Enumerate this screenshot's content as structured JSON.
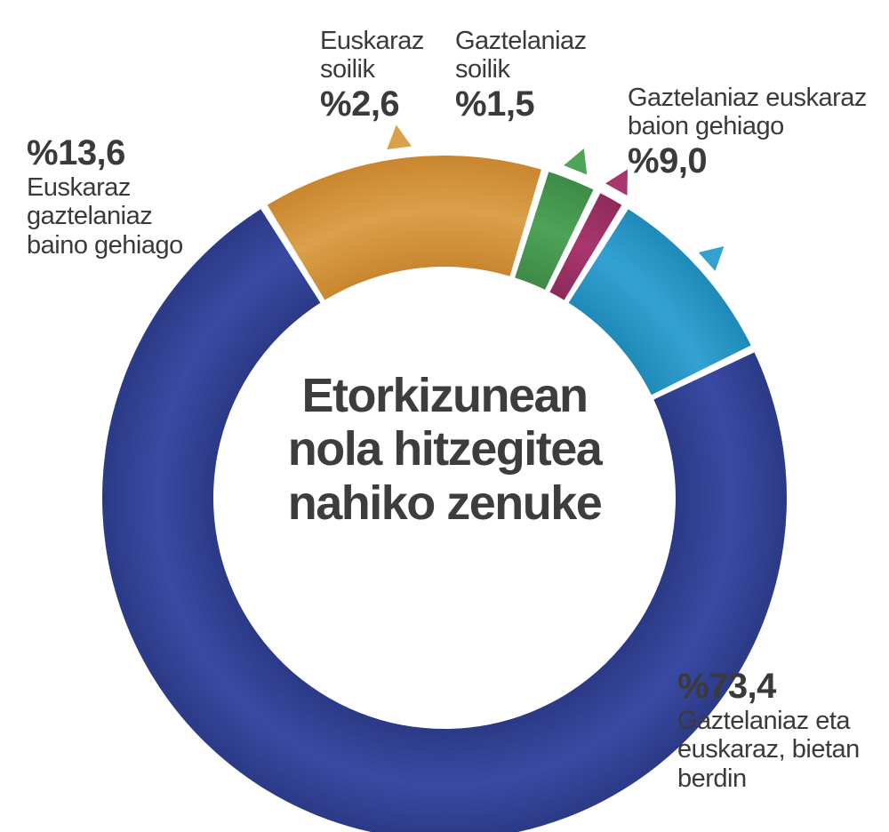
{
  "chart_data": {
    "type": "pie",
    "title_lines": [
      "Etorkizunean",
      "nola hitzegitea",
      "nahiko zenuke"
    ],
    "slices": [
      {
        "label_lines": [
          "Gaztelaniaz eta",
          "euskaraz, bietan",
          "berdin"
        ],
        "value": 73.4,
        "value_text": "%73,4",
        "color": "#2b3a86",
        "color_light": "#3a4aa3"
      },
      {
        "label_lines": [
          "Euskaraz",
          "gaztelaniaz",
          "baino gehiago"
        ],
        "value": 13.6,
        "value_text": "%13,6",
        "color": "#c9862e",
        "color_light": "#dba04a"
      },
      {
        "label_lines": [
          "Euskaraz",
          "soilik"
        ],
        "value": 2.6,
        "value_text": "%2,6",
        "color": "#3e8a47",
        "color_light": "#4da357"
      },
      {
        "label_lines": [
          "Gaztelaniaz",
          "soilik"
        ],
        "value": 1.5,
        "value_text": "%1,5",
        "color": "#8e2a5a",
        "color_light": "#a8376d"
      },
      {
        "label_lines": [
          "Gaztelaniaz euskaraz",
          "baion gehiago"
        ],
        "value": 9.0,
        "value_text": "%9,0",
        "color": "#1f8ab8",
        "color_light": "#33a2d2"
      }
    ]
  }
}
